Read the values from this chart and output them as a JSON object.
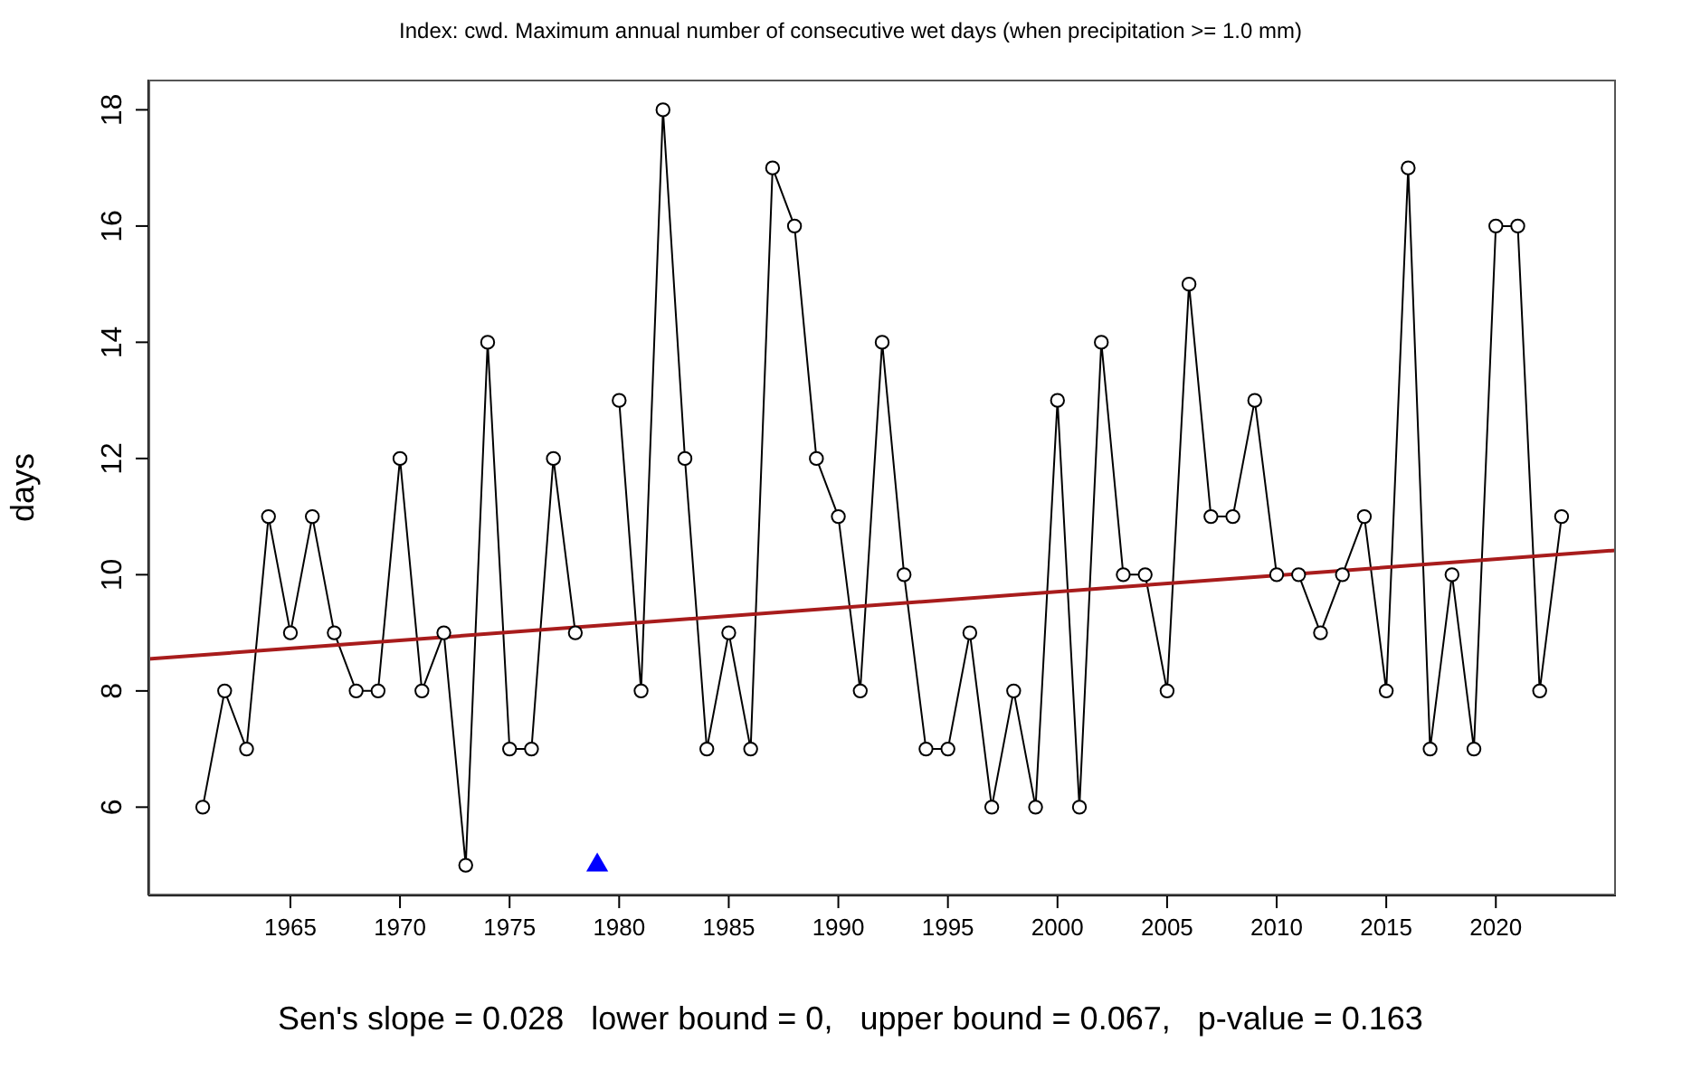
{
  "chart_data": {
    "type": "line",
    "title": "Index: cwd. Maximum annual number of consecutive wet days (when precipitation >= 1.0 mm)",
    "ylabel": "days",
    "annotations": [
      "Sen's slope = 0.028   lower bound = 0,   upper bound = 0.067,   p-value = 0.163"
    ],
    "xlim": [
      1958.52,
      2025.48
    ],
    "xticks": [
      1965,
      1970,
      1975,
      1980,
      1985,
      1990,
      1995,
      2000,
      2005,
      2010,
      2015,
      2020
    ],
    "ylim": [
      4.48,
      18.52
    ],
    "yticks": [
      6,
      8,
      10,
      12,
      14,
      16,
      18
    ],
    "grid": false,
    "marker": "circle",
    "line_style": "solid",
    "series": [
      {
        "color": "#000000",
        "x": [
          1961,
          1962,
          1963,
          1964,
          1965,
          1966,
          1967,
          1968,
          1969,
          1970,
          1971,
          1972,
          1973,
          1974,
          1975,
          1976,
          1977,
          1978,
          1979,
          1980,
          1981,
          1982,
          1983,
          1984,
          1985,
          1986,
          1987,
          1988,
          1989,
          1990,
          1991,
          1992,
          1993,
          1994,
          1995,
          1996,
          1997,
          1998,
          1999,
          2000,
          2001,
          2002,
          2003,
          2004,
          2005,
          2006,
          2007,
          2008,
          2009,
          2010,
          2011,
          2012,
          2013,
          2014,
          2015,
          2016,
          2017,
          2018,
          2019,
          2020,
          2021,
          2022,
          2023
        ],
        "values": [
          6,
          8,
          7,
          11,
          9,
          11,
          9,
          8,
          8,
          12,
          8,
          9,
          5,
          14,
          7,
          7,
          12,
          9,
          null,
          13,
          8,
          18,
          12,
          7,
          9,
          7,
          17,
          16,
          12,
          11,
          8,
          14,
          10,
          7,
          7,
          9,
          6,
          8,
          6,
          13,
          6,
          14,
          10,
          10,
          8,
          15,
          11,
          11,
          13,
          10,
          10,
          9,
          10,
          11,
          8,
          17,
          7,
          10,
          7,
          16,
          16,
          8,
          11
        ]
      },
      {
        "type": "line",
        "color": "#a81c1c",
        "marker": "none",
        "x": [
          1958.52,
          2025.48
        ],
        "values": [
          8.55,
          10.42
        ]
      },
      {
        "type": "scatter",
        "color": "#0000ff",
        "marker": "triangle",
        "x": [
          1979
        ],
        "values": [
          5
        ]
      }
    ]
  }
}
